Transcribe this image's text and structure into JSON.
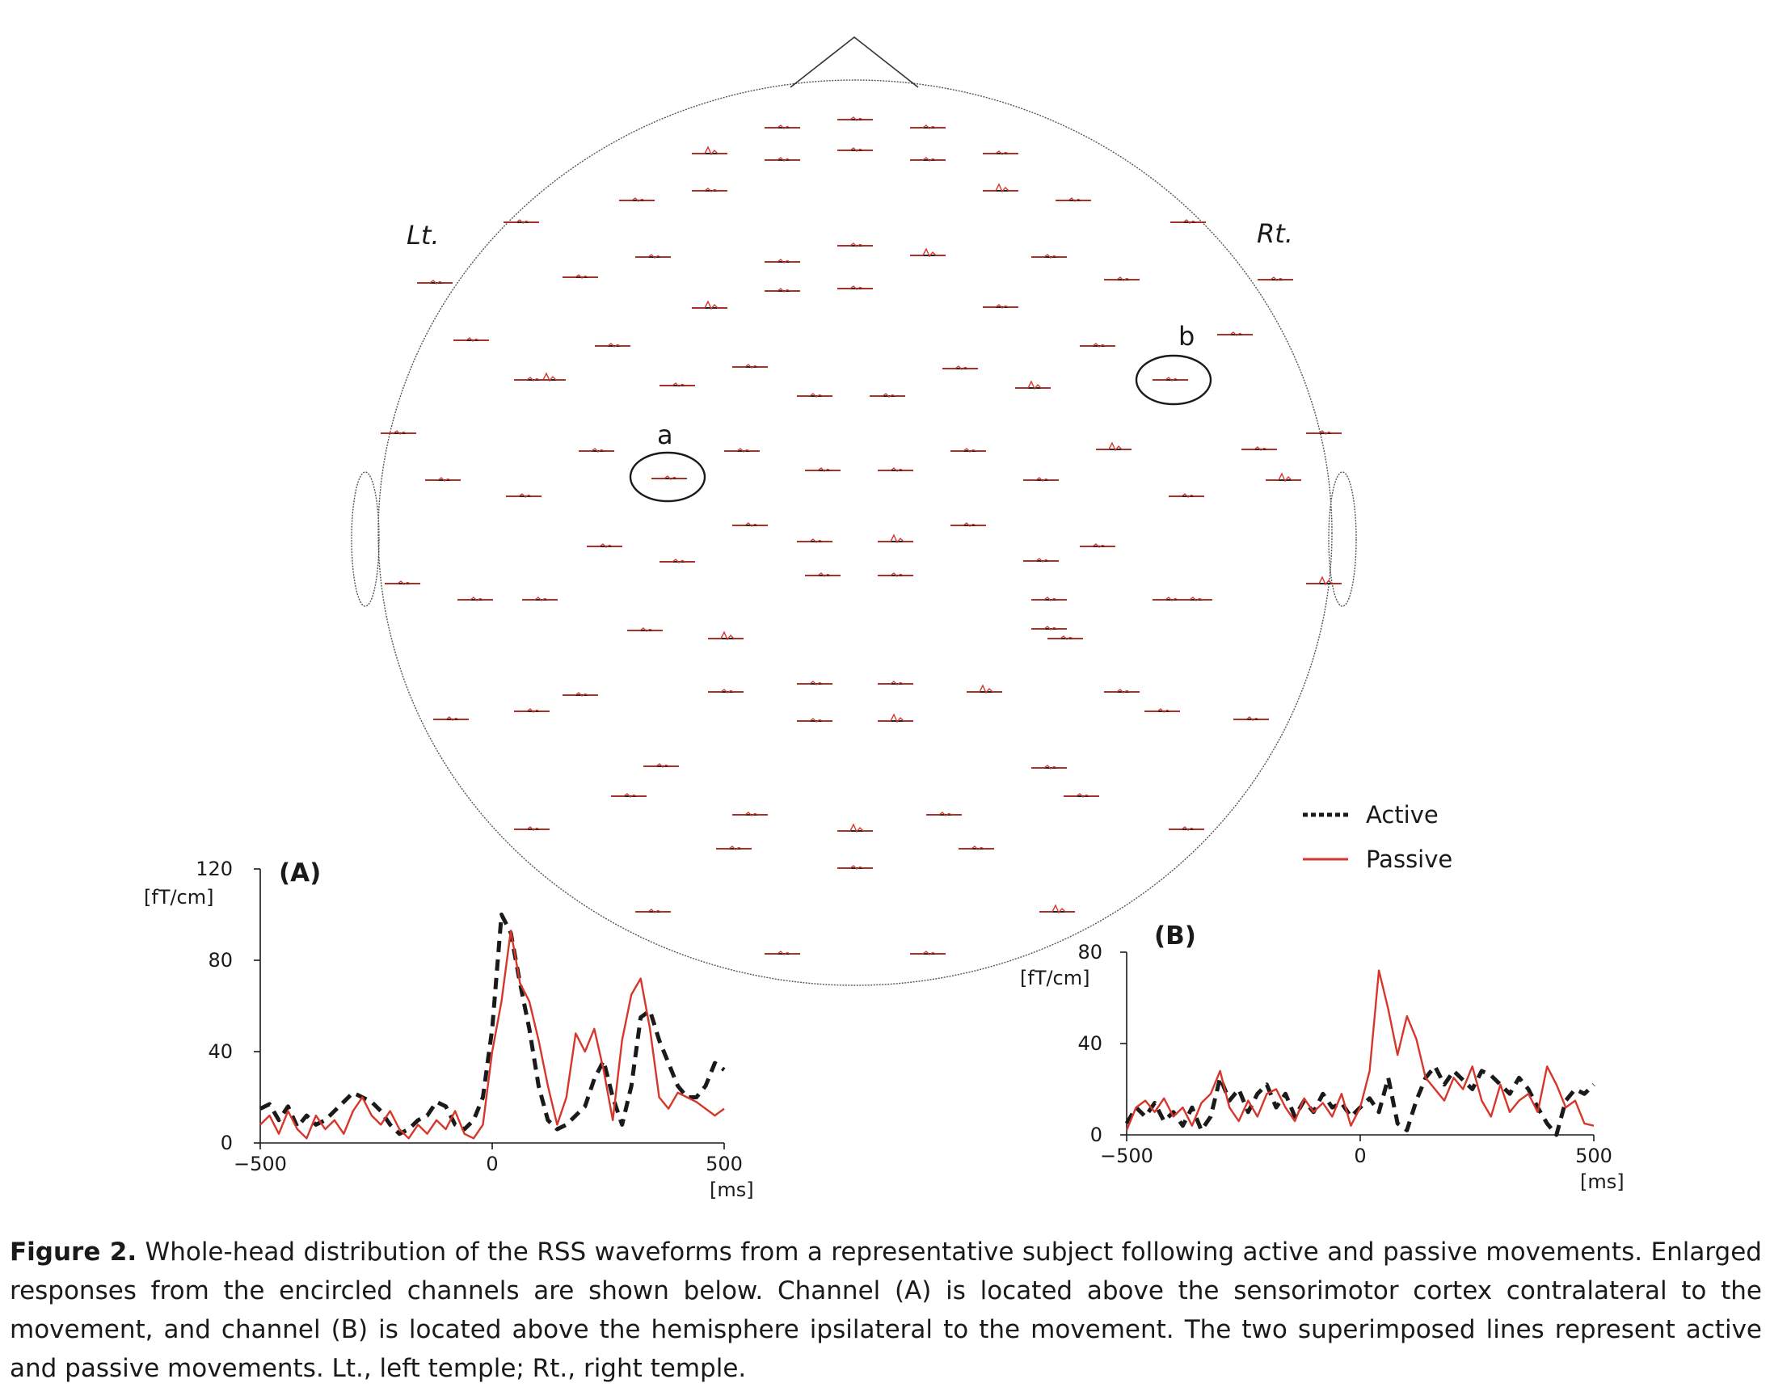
{
  "head_map": {
    "left_label": "Lt.",
    "right_label": "Rt.",
    "encircled": [
      "a",
      "b"
    ]
  },
  "legend": {
    "active_label": "Active",
    "passive_label": "Passive",
    "active_color": "#1a1a1a",
    "passive_color": "#d7362b"
  },
  "chart_data": [
    {
      "type": "line",
      "panel_label": "(A)",
      "unit_y": "[fT/cm]",
      "unit_x": "[ms]",
      "xlim": [
        -500,
        500
      ],
      "ylim": [
        0,
        120
      ],
      "x_ticks": [
        -500,
        0,
        500
      ],
      "x_tick_labels": [
        "−500",
        "0",
        "500"
      ],
      "y_ticks": [
        0,
        40,
        80,
        120
      ],
      "y_tick_labels": [
        "0",
        "40",
        "80",
        "120"
      ],
      "series": [
        {
          "name": "Active",
          "style": "dashed",
          "color": "#1a1a1a",
          "x": [
            -500,
            -480,
            -460,
            -440,
            -420,
            -400,
            -380,
            -360,
            -340,
            -320,
            -300,
            -280,
            -260,
            -240,
            -220,
            -200,
            -180,
            -160,
            -140,
            -120,
            -100,
            -80,
            -60,
            -40,
            -20,
            0,
            20,
            40,
            60,
            80,
            100,
            120,
            140,
            160,
            180,
            200,
            220,
            240,
            260,
            280,
            300,
            320,
            340,
            360,
            380,
            400,
            420,
            440,
            460,
            480,
            500
          ],
          "y": [
            15,
            17,
            10,
            16,
            7,
            12,
            8,
            10,
            14,
            18,
            22,
            20,
            18,
            14,
            8,
            4,
            6,
            10,
            12,
            18,
            16,
            8,
            6,
            10,
            20,
            50,
            100,
            92,
            70,
            50,
            25,
            10,
            6,
            8,
            12,
            16,
            28,
            36,
            20,
            8,
            25,
            55,
            58,
            45,
            35,
            25,
            20,
            20,
            25,
            35,
            32
          ]
        },
        {
          "name": "Passive",
          "style": "solid",
          "color": "#d7362b",
          "x": [
            -500,
            -480,
            -460,
            -440,
            -420,
            -400,
            -380,
            -360,
            -340,
            -320,
            -300,
            -280,
            -260,
            -240,
            -220,
            -200,
            -180,
            -160,
            -140,
            -120,
            -100,
            -80,
            -60,
            -40,
            -20,
            0,
            20,
            40,
            60,
            80,
            100,
            120,
            140,
            160,
            180,
            200,
            220,
            240,
            260,
            280,
            300,
            320,
            340,
            360,
            380,
            400,
            420,
            440,
            460,
            480,
            500
          ],
          "y": [
            8,
            12,
            4,
            14,
            6,
            2,
            12,
            6,
            10,
            4,
            14,
            20,
            12,
            8,
            14,
            6,
            2,
            8,
            4,
            10,
            6,
            14,
            4,
            2,
            8,
            40,
            62,
            93,
            70,
            62,
            45,
            25,
            8,
            20,
            48,
            40,
            50,
            32,
            10,
            45,
            65,
            72,
            50,
            20,
            15,
            22,
            20,
            18,
            15,
            12,
            15
          ]
        }
      ]
    },
    {
      "type": "line",
      "panel_label": "(B)",
      "unit_y": "[fT/cm]",
      "unit_x": "[ms]",
      "xlim": [
        -500,
        500
      ],
      "ylim": [
        0,
        80
      ],
      "x_ticks": [
        -500,
        0,
        500
      ],
      "x_tick_labels": [
        "−500",
        "0",
        "500"
      ],
      "y_ticks": [
        0,
        40,
        80
      ],
      "y_tick_labels": [
        "0",
        "40",
        "80"
      ],
      "series": [
        {
          "name": "Active",
          "style": "dashed",
          "color": "#1a1a1a",
          "x": [
            -500,
            -480,
            -460,
            -440,
            -420,
            -400,
            -380,
            -360,
            -340,
            -320,
            -300,
            -280,
            -260,
            -240,
            -220,
            -200,
            -180,
            -160,
            -140,
            -120,
            -100,
            -80,
            -60,
            -40,
            -20,
            0,
            20,
            40,
            60,
            80,
            100,
            120,
            140,
            160,
            180,
            200,
            220,
            240,
            260,
            280,
            300,
            320,
            340,
            360,
            380,
            400,
            420,
            440,
            460,
            480,
            500
          ],
          "y": [
            5,
            12,
            8,
            14,
            6,
            10,
            4,
            12,
            2,
            8,
            25,
            15,
            20,
            10,
            18,
            22,
            12,
            18,
            8,
            15,
            10,
            18,
            12,
            14,
            8,
            12,
            16,
            10,
            25,
            5,
            2,
            15,
            25,
            30,
            22,
            28,
            24,
            20,
            28,
            26,
            22,
            18,
            25,
            20,
            12,
            5,
            0,
            15,
            20,
            18,
            22
          ]
        },
        {
          "name": "Passive",
          "style": "solid",
          "color": "#d7362b",
          "x": [
            -500,
            -480,
            -460,
            -440,
            -420,
            -400,
            -380,
            -360,
            -340,
            -320,
            -300,
            -280,
            -260,
            -240,
            -220,
            -200,
            -180,
            -160,
            -140,
            -120,
            -100,
            -80,
            -60,
            -40,
            -20,
            0,
            20,
            40,
            60,
            80,
            100,
            120,
            140,
            160,
            180,
            200,
            220,
            240,
            260,
            280,
            300,
            320,
            340,
            360,
            380,
            400,
            420,
            440,
            460,
            480,
            500
          ],
          "y": [
            2,
            12,
            15,
            10,
            16,
            8,
            12,
            4,
            14,
            18,
            28,
            12,
            6,
            15,
            8,
            18,
            20,
            12,
            6,
            16,
            10,
            14,
            8,
            18,
            4,
            12,
            28,
            72,
            55,
            35,
            52,
            42,
            25,
            20,
            15,
            25,
            20,
            30,
            15,
            8,
            22,
            10,
            15,
            18,
            10,
            30,
            22,
            12,
            15,
            5,
            4
          ]
        }
      ]
    }
  ],
  "caption": {
    "label": "Figure 2.",
    "text": " Whole-head distribution of the RSS waveforms from a representative subject following active and passive movements. Enlarged responses from the encircled channels are shown below. Channel (A) is located above the sensorimotor cortex contralateral to the movement, and channel (B) is located above the hemisphere ipsilateral to the movement. The two superimposed lines represent active and passive movements. Lt., left temple; Rt., right temple."
  }
}
